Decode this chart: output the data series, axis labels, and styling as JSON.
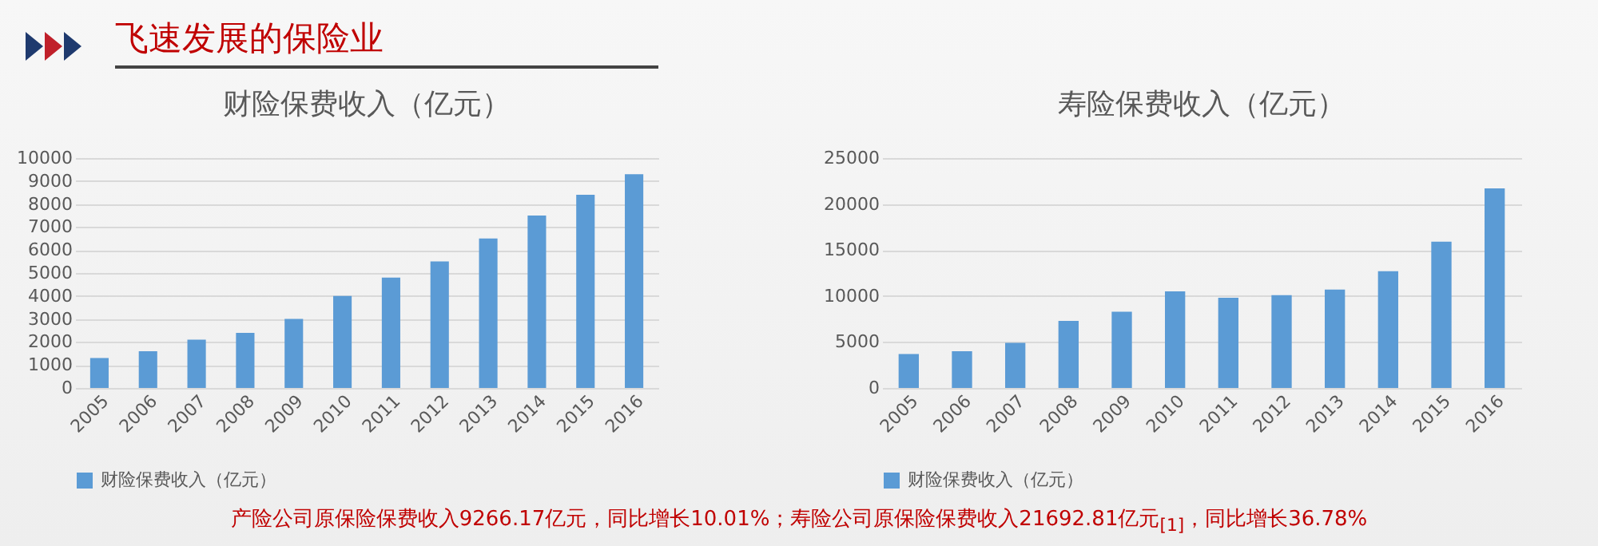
{
  "chart_data": [
    {
      "type": "bar",
      "title": "财险保费收入（亿元）",
      "annotations": [
        "飞速发展的保险业"
      ],
      "categories": [
        "2005",
        "2006",
        "2007",
        "2008",
        "2009",
        "2010",
        "2011",
        "2012",
        "2013",
        "2014",
        "2015",
        "2016"
      ],
      "series": [
        {
          "name": "财险保费收入（亿元）",
          "color": "#5b9bd5",
          "values": [
            1300,
            1600,
            2100,
            2400,
            3000,
            4000,
            4800,
            5500,
            6500,
            7500,
            8400,
            9300
          ]
        }
      ],
      "ylim": [
        0,
        10000
      ],
      "yticks": [
        0,
        1000,
        2000,
        3000,
        4000,
        5000,
        6000,
        7000,
        8000,
        9000,
        10000
      ],
      "grid": "y",
      "legend": "bottom"
    },
    {
      "type": "bar",
      "title": "寿险保费收入（亿元）",
      "annotations": [
        "产险公司原保险保费收入9266.17亿元，同比增长10.01%；寿险公司原保险保费收入21692.81亿元$_{[1]}$，同比增长36.78%"
      ],
      "categories": [
        "2005",
        "2006",
        "2007",
        "2008",
        "2009",
        "2010",
        "2011",
        "2012",
        "2013",
        "2014",
        "2015",
        "2016"
      ],
      "series": [
        {
          "name": "财险保费收入（亿元）",
          "color": "#5b9bd5",
          "values": [
            3700,
            4000,
            4900,
            7300,
            8300,
            10500,
            9800,
            10100,
            10700,
            12700,
            15900,
            21700
          ]
        }
      ],
      "ylim": [
        0,
        25000
      ],
      "yticks": [
        0,
        5000,
        10000,
        15000,
        20000,
        25000
      ],
      "grid": "y",
      "legend": "bottom"
    }
  ]
}
